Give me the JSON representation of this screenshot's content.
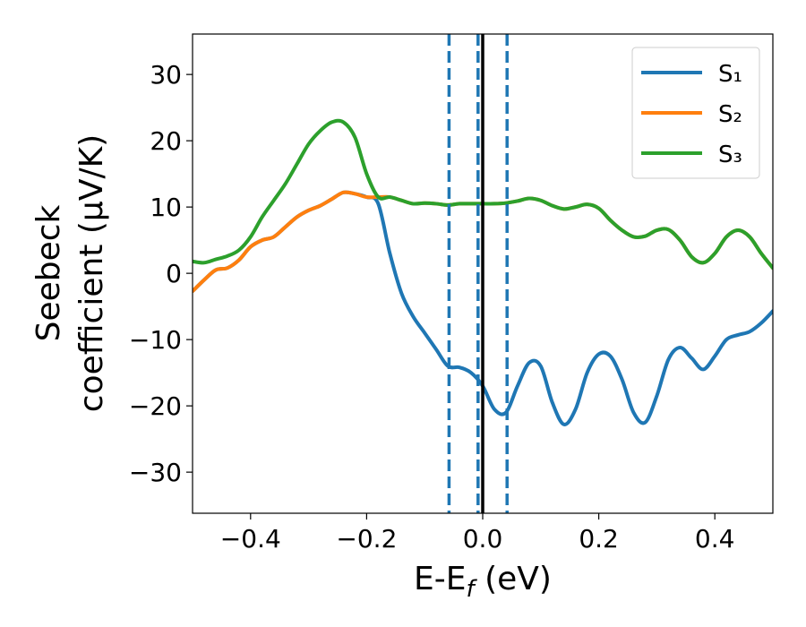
{
  "chart_data": {
    "type": "line",
    "xlabel": [
      "E-E",
      "f",
      " (eV)"
    ],
    "ylabel": [
      "Seebeck",
      "coefficient  (μV/K)"
    ],
    "x": [
      -0.5,
      -0.48,
      -0.46,
      -0.44,
      -0.42,
      -0.4,
      -0.38,
      -0.36,
      -0.34,
      -0.32,
      -0.3,
      -0.28,
      -0.26,
      -0.24,
      -0.22,
      -0.2,
      -0.18,
      -0.16,
      -0.14,
      -0.12,
      -0.1,
      -0.08,
      -0.06,
      -0.04,
      -0.02,
      0,
      0.02,
      0.04,
      0.06,
      0.08,
      0.1,
      0.12,
      0.14,
      0.16,
      0.18,
      0.2,
      0.22,
      0.24,
      0.26,
      0.28,
      0.3,
      0.32,
      0.34,
      0.36,
      0.38,
      0.4,
      0.42,
      0.44,
      0.46,
      0.48,
      0.5
    ],
    "series": [
      {
        "name": "S₁",
        "color": "#1f77b4",
        "values": [
          -2.7,
          -1,
          0.5,
          0.8,
          2,
          4,
          5,
          5.5,
          7,
          8.5,
          9.5,
          10.2,
          11.2,
          12.2,
          12,
          11.5,
          10.5,
          3,
          -3,
          -6.5,
          -9,
          -11.5,
          -14,
          -14.2,
          -15,
          -17,
          -20.5,
          -21,
          -17,
          -13.5,
          -14,
          -19.5,
          -22.8,
          -20.5,
          -15,
          -12.2,
          -12.5,
          -16,
          -21,
          -22.5,
          -18.5,
          -13,
          -11.2,
          -12.8,
          -14.5,
          -12.5,
          -10,
          -9.3,
          -8.8,
          -7.5,
          -5.7
        ]
      },
      {
        "name": "S₂",
        "color": "#ff7f0e",
        "values": [
          -2.7,
          -1,
          0.5,
          0.8,
          2,
          4,
          5,
          5.5,
          7,
          8.5,
          9.5,
          10.2,
          11.2,
          12.2,
          12,
          11.5,
          11.5,
          11.5,
          11,
          10.5,
          10.6,
          10.5,
          10.3,
          10.5,
          10.5,
          10.5,
          10.5,
          10.6,
          10.9,
          11.3,
          11,
          10.2,
          9.7,
          10,
          10.4,
          9.8,
          8,
          6.5,
          5.5,
          5.6,
          6.5,
          6.6,
          5,
          2.5,
          1.6,
          3,
          5.5,
          6.5,
          5.5,
          3,
          0.8
        ]
      },
      {
        "name": "S₃",
        "color": "#2ca02c",
        "values": [
          1.8,
          1.6,
          2.1,
          2.6,
          3.5,
          5.5,
          8.5,
          11,
          13.5,
          16.5,
          19.5,
          21.5,
          22.8,
          22.8,
          20.5,
          15,
          11.5,
          11.5,
          11,
          10.5,
          10.6,
          10.5,
          10.3,
          10.5,
          10.5,
          10.5,
          10.5,
          10.6,
          10.9,
          11.3,
          11,
          10.2,
          9.7,
          10,
          10.4,
          9.8,
          8,
          6.5,
          5.5,
          5.6,
          6.5,
          6.6,
          5,
          2.5,
          1.6,
          3,
          5.5,
          6.5,
          5.5,
          3,
          0.8
        ]
      }
    ],
    "vlines": [
      {
        "x": -0.058,
        "color": "#1f77b4",
        "style": "dashed"
      },
      {
        "x": -0.008,
        "color": "#1f77b4",
        "style": "dashed"
      },
      {
        "x": 0.042,
        "color": "#1f77b4",
        "style": "dashed"
      },
      {
        "x": 0.0,
        "color": "#000000",
        "style": "solid"
      }
    ],
    "xlim": [
      -0.5,
      0.5
    ],
    "ylim": [
      -36.2,
      36.1
    ],
    "xticks": [
      {
        "value": -0.4,
        "label": "−0.4"
      },
      {
        "value": -0.2,
        "label": "−0.2"
      },
      {
        "value": 0,
        "label": "0.0"
      },
      {
        "value": 0.2,
        "label": "0.2"
      },
      {
        "value": 0.4,
        "label": "0.4"
      }
    ],
    "yticks": [
      {
        "value": -30,
        "label": "−30"
      },
      {
        "value": -20,
        "label": "−20"
      },
      {
        "value": -10,
        "label": "−10"
      },
      0,
      10,
      20,
      30
    ],
    "legend": "upper right",
    "grid": false
  }
}
